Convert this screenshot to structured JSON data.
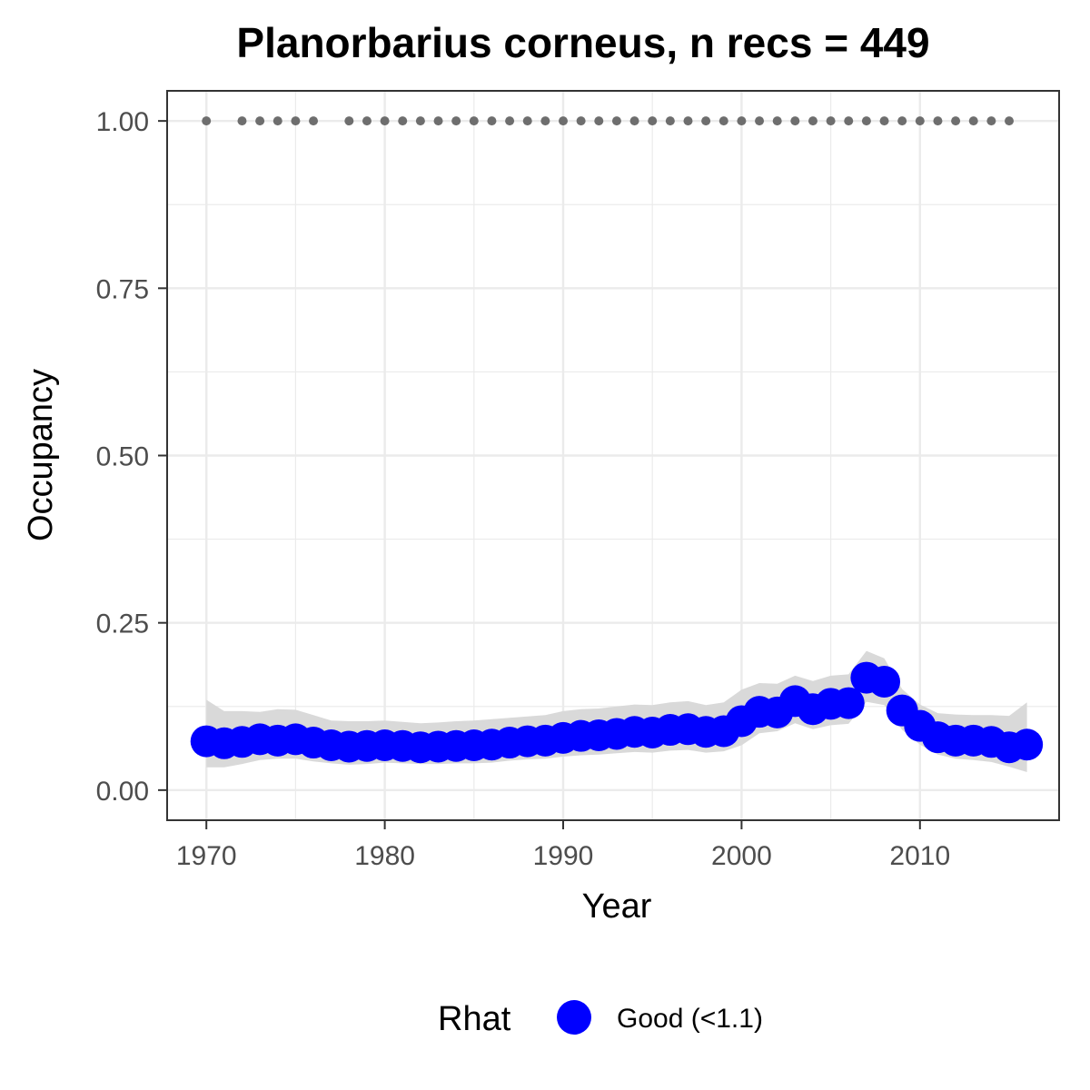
{
  "chart_data": {
    "type": "line",
    "title": "Planorbarius corneus, n recs = 449",
    "xlabel": "Year",
    "ylabel": "Occupancy",
    "xlim": [
      1967.8,
      2017.8
    ],
    "ylim": [
      -0.045,
      1.045
    ],
    "x_ticks": [
      1970,
      1980,
      1990,
      2000,
      2010
    ],
    "x_tick_labels": [
      "1970",
      "1980",
      "1990",
      "2000",
      "2010"
    ],
    "y_ticks": [
      0,
      0.25,
      0.5,
      0.75,
      1
    ],
    "y_tick_labels": [
      "0.00",
      "0.25",
      "0.50",
      "0.75",
      "1.00"
    ],
    "grid": true,
    "colors": {
      "estimate": "#0000ff",
      "ribbon": "#d9d9d9",
      "record_years": "#6e6e6e",
      "grid": "#ebebeb",
      "panel_border": "#333333"
    },
    "series": [
      {
        "x": [
          1970,
          1971,
          1972,
          1973,
          1974,
          1975,
          1976,
          1977,
          1978,
          1979,
          1980,
          1981,
          1982,
          1983,
          1984,
          1985,
          1986,
          1987,
          1988,
          1989,
          1990,
          1991,
          1992,
          1993,
          1994,
          1995,
          1996,
          1997,
          1998,
          1999,
          2000,
          2001,
          2002,
          2003,
          2004,
          2005,
          2006,
          2007,
          2008,
          2009,
          2010,
          2011,
          2012,
          2013,
          2014,
          2015,
          2016
        ],
        "values": [
          0.073,
          0.07,
          0.072,
          0.076,
          0.074,
          0.076,
          0.071,
          0.067,
          0.065,
          0.066,
          0.067,
          0.066,
          0.064,
          0.065,
          0.066,
          0.067,
          0.068,
          0.071,
          0.073,
          0.074,
          0.078,
          0.081,
          0.082,
          0.084,
          0.087,
          0.086,
          0.09,
          0.091,
          0.087,
          0.088,
          0.103,
          0.117,
          0.116,
          0.133,
          0.121,
          0.129,
          0.13,
          0.168,
          0.162,
          0.119,
          0.096,
          0.079,
          0.074,
          0.074,
          0.072,
          0.064,
          0.068
        ],
        "lower": [
          0.034,
          0.034,
          0.039,
          0.045,
          0.047,
          0.047,
          0.043,
          0.04,
          0.038,
          0.039,
          0.041,
          0.04,
          0.039,
          0.039,
          0.04,
          0.04,
          0.041,
          0.044,
          0.046,
          0.047,
          0.05,
          0.052,
          0.053,
          0.055,
          0.057,
          0.056,
          0.059,
          0.06,
          0.056,
          0.058,
          0.067,
          0.085,
          0.088,
          0.1,
          0.091,
          0.097,
          0.099,
          0.132,
          0.127,
          0.09,
          0.068,
          0.053,
          0.047,
          0.045,
          0.042,
          0.035,
          0.027
        ],
        "upper": [
          0.135,
          0.118,
          0.118,
          0.117,
          0.121,
          0.12,
          0.112,
          0.104,
          0.103,
          0.103,
          0.104,
          0.102,
          0.1,
          0.101,
          0.103,
          0.104,
          0.106,
          0.108,
          0.11,
          0.112,
          0.118,
          0.121,
          0.122,
          0.125,
          0.128,
          0.127,
          0.131,
          0.133,
          0.127,
          0.131,
          0.15,
          0.16,
          0.159,
          0.171,
          0.163,
          0.171,
          0.173,
          0.208,
          0.197,
          0.151,
          0.128,
          0.115,
          0.113,
          0.112,
          0.112,
          0.111,
          0.131
        ]
      }
    ],
    "record_years": [
      1970,
      1972,
      1973,
      1974,
      1975,
      1976,
      1978,
      1979,
      1980,
      1981,
      1982,
      1983,
      1984,
      1985,
      1986,
      1987,
      1988,
      1989,
      1990,
      1991,
      1992,
      1993,
      1994,
      1995,
      1996,
      1997,
      1998,
      1999,
      2000,
      2001,
      2002,
      2003,
      2004,
      2005,
      2006,
      2007,
      2008,
      2009,
      2010,
      2011,
      2012,
      2013,
      2014,
      2015
    ],
    "record_value": 1.0,
    "legend": {
      "title": "Rhat",
      "items": [
        {
          "label": "Good (<1.1)",
          "color": "#0000ff"
        }
      ],
      "position": "bottom"
    }
  }
}
